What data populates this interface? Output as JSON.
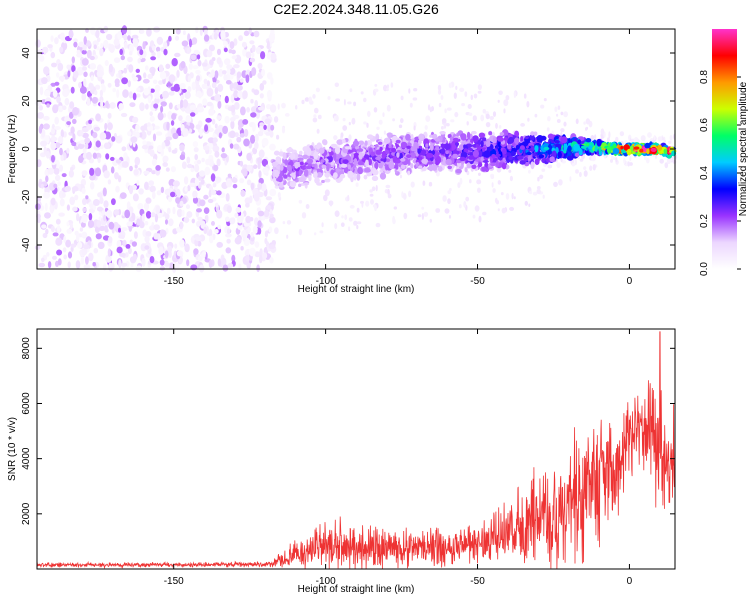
{
  "title": "C2E2.2024.348.11.05.G26",
  "chart_data": [
    {
      "type": "heatmap",
      "xlabel": "Height of straight line (km)",
      "ylabel": "Frequency (Hz)",
      "xlim": [
        -195,
        15
      ],
      "ylim": [
        -50,
        50
      ],
      "x_ticks": [
        -150,
        -100,
        -50,
        0
      ],
      "y_ticks": [
        -40,
        -20,
        0,
        20,
        40
      ],
      "x_tick_labels": [
        "-150",
        "-100",
        "-50",
        "0"
      ],
      "y_tick_labels": [
        "-40",
        "-20",
        "0",
        "20",
        "40"
      ],
      "colorbar": {
        "label": "Normalized spectral amplitude",
        "range": [
          0,
          1
        ],
        "ticks": [
          0.0,
          0.2,
          0.4,
          0.6,
          0.8
        ],
        "tick_labels": [
          "0.0",
          "0.2",
          "0.4",
          "0.6",
          "0.8"
        ],
        "colors": [
          "#ffffff",
          "#ecd6ff",
          "#9933ff",
          "#0000ff",
          "#00ccff",
          "#00ff66",
          "#ccff00",
          "#ff9900",
          "#ff0000",
          "#ff33cc"
        ]
      },
      "noise_region": {
        "x_range": [
          -195,
          -117
        ],
        "freq_range": [
          -50,
          50
        ],
        "amplitude": 0.15
      },
      "signal_band": [
        {
          "x": -117,
          "center": -10,
          "half_width": 9,
          "amplitude": 0.2
        },
        {
          "x": -100,
          "center": -5,
          "half_width": 10,
          "amplitude": 0.22
        },
        {
          "x": -75,
          "center": -2,
          "half_width": 9,
          "amplitude": 0.25
        },
        {
          "x": -50,
          "center": -1,
          "half_width": 9,
          "amplitude": 0.3
        },
        {
          "x": -30,
          "center": 0,
          "half_width": 7,
          "amplitude": 0.4
        },
        {
          "x": -12,
          "center": 1,
          "half_width": 3,
          "amplitude": 0.6
        },
        {
          "x": -5,
          "center": 0,
          "half_width": 2,
          "amplitude": 0.9
        },
        {
          "x": 5,
          "center": 0,
          "half_width": 2,
          "amplitude": 0.95
        },
        {
          "x": 15,
          "center": -1,
          "half_width": 2,
          "amplitude": 0.9
        }
      ]
    },
    {
      "type": "line",
      "xlabel": "Height of straight line (km)",
      "ylabel": "SNR (10 * v/v)",
      "xlim": [
        -195,
        15
      ],
      "ylim": [
        0,
        8700
      ],
      "x_ticks": [
        -150,
        -100,
        -50,
        0
      ],
      "y_ticks": [
        2000,
        4000,
        6000,
        8000
      ],
      "x_tick_labels": [
        "-150",
        "-100",
        "-50",
        "0"
      ],
      "y_tick_labels": [
        "2000",
        "4000",
        "6000",
        "8000"
      ],
      "color": "#ee3333",
      "envelope": {
        "x": [
          -195,
          -150,
          -118,
          -110,
          -100,
          -80,
          -60,
          -50,
          -40,
          -30,
          -20,
          -15,
          -10,
          -5,
          0,
          5,
          10,
          12,
          15
        ],
        "mean": [
          150,
          150,
          170,
          500,
          850,
          750,
          800,
          950,
          1300,
          1800,
          2500,
          2400,
          3200,
          3500,
          4800,
          5200,
          4500,
          3500,
          4500
        ],
        "spread": [
          80,
          80,
          100,
          500,
          900,
          700,
          650,
          700,
          1000,
          1600,
          2500,
          2600,
          2400,
          1800,
          1500,
          1300,
          2600,
          1800,
          1500
        ]
      },
      "peak": {
        "x": 10,
        "y": 8600
      }
    }
  ]
}
